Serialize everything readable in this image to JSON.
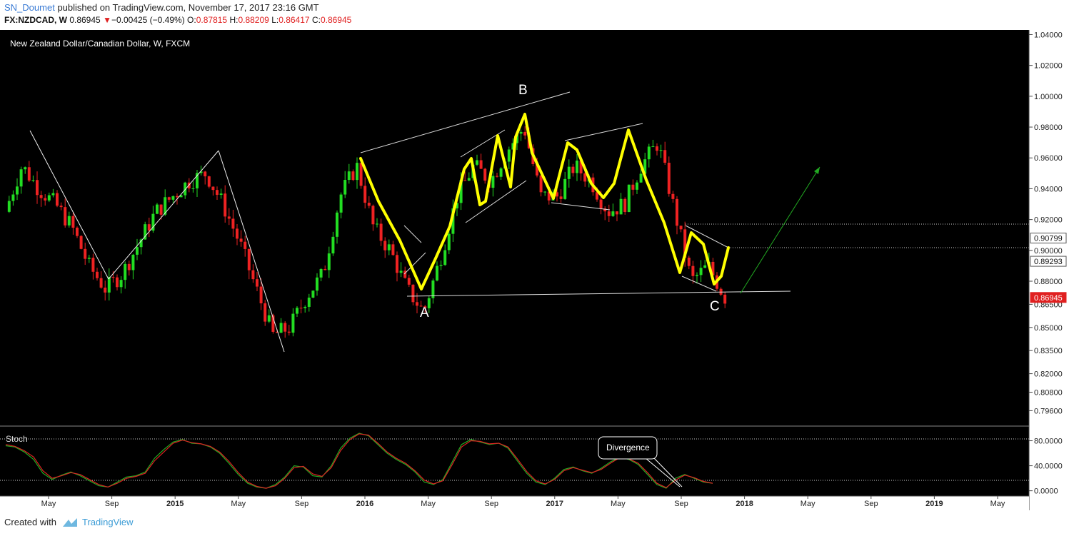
{
  "header": {
    "author": "SN_Doumet",
    "published": "published on TradingView.com, November 17, 2017 23:16 GMT",
    "symbol": "FX:NZDCAD, W",
    "last": "0.86945",
    "change_arrow": "▼",
    "change": "−0.00425 (−0.49%)",
    "o_label": "O:",
    "o": "0.87815",
    "h_label": "H:",
    "h": "0.88209",
    "l_label": "L:",
    "l": "0.86417",
    "c_label": "C:",
    "c": "0.86945"
  },
  "footer": {
    "created": "Created with",
    "brand": "TradingView"
  },
  "chart_data": [
    {
      "type": "candlestick",
      "title": "New Zealand Dollar/Canadian Dollar, W, FXCM",
      "ylim": [
        0.786,
        1.043
      ],
      "grid": false,
      "price_ticks": [
        "1.04000",
        "1.02000",
        "1.00000",
        "0.98000",
        "0.96000",
        "0.94000",
        "0.92000",
        "0.90000",
        "0.88000",
        "0.86500",
        "0.85000",
        "0.83500",
        "0.82000",
        "0.80800",
        "0.79600"
      ],
      "price_tick_values": [
        1.04,
        1.02,
        1.0,
        0.98,
        0.96,
        0.94,
        0.92,
        0.9,
        0.88,
        0.865,
        0.85,
        0.835,
        0.82,
        0.808,
        0.796
      ],
      "price_labels": [
        {
          "text": "0.90799",
          "value": 0.90799,
          "color": "#ffffff"
        },
        {
          "text": "0.89293",
          "value": 0.89293,
          "color": "#ffffff"
        },
        {
          "text": "0.86945",
          "value": 0.86945,
          "color": "#e02020"
        }
      ],
      "time_labels": [
        "May",
        "Sep",
        "2015",
        "May",
        "Sep",
        "2016",
        "May",
        "Sep",
        "2017",
        "May",
        "Sep",
        "2018",
        "May",
        "Sep",
        "2019",
        "May"
      ],
      "annotations": [
        "A",
        "B",
        "C"
      ],
      "series": [
        {
          "name": "FX:NZDCAD, W",
          "close_path": [
            [
              "2014-02",
              0.925
            ],
            [
              "2014-04",
              0.955
            ],
            [
              "2014-06",
              0.94
            ],
            [
              "2014-07",
              0.93
            ],
            [
              "2014-08",
              0.915
            ],
            [
              "2014-09",
              0.89
            ],
            [
              "2014-10",
              0.875
            ],
            [
              "2014-11",
              0.885
            ],
            [
              "2014-12",
              0.905
            ],
            [
              "2015-01",
              0.925
            ],
            [
              "2015-02",
              0.935
            ],
            [
              "2015-03",
              0.945
            ],
            [
              "2015-04",
              0.95
            ],
            [
              "2015-05",
              0.93
            ],
            [
              "2015-06",
              0.905
            ],
            [
              "2015-07",
              0.875
            ],
            [
              "2015-08",
              0.845
            ],
            [
              "2015-09",
              0.85
            ],
            [
              "2015-10",
              0.87
            ],
            [
              "2015-11",
              0.885
            ],
            [
              "2015-12",
              0.935
            ],
            [
              "2016-01",
              0.955
            ],
            [
              "2016-02",
              0.915
            ],
            [
              "2016-03",
              0.9
            ],
            [
              "2016-04",
              0.875
            ],
            [
              "2016-05",
              0.86
            ],
            [
              "2016-06",
              0.895
            ],
            [
              "2016-07",
              0.935
            ],
            [
              "2016-08",
              0.955
            ],
            [
              "2016-09",
              0.945
            ],
            [
              "2016-10",
              0.965
            ],
            [
              "2016-11",
              0.98
            ],
            [
              "2016-12",
              0.935
            ],
            [
              "2017-01",
              0.935
            ],
            [
              "2017-02",
              0.955
            ],
            [
              "2017-03",
              0.945
            ],
            [
              "2017-04",
              0.925
            ],
            [
              "2017-05",
              0.93
            ],
            [
              "2017-06",
              0.955
            ],
            [
              "2017-07",
              0.97
            ],
            [
              "2017-08",
              0.925
            ],
            [
              "2017-09",
              0.88
            ],
            [
              "2017-10",
              0.89
            ],
            [
              "2017-11",
              0.86945
            ]
          ]
        }
      ]
    },
    {
      "type": "line",
      "title": "Stoch",
      "ylim": [
        -5,
        100
      ],
      "levels": [
        80,
        20
      ],
      "y_ticks": [
        "80.0000",
        "40.0000",
        "0.0000"
      ],
      "y_tick_values": [
        80,
        40,
        0
      ],
      "annotation": "Divergence",
      "series": [
        {
          "color": "#22aa22",
          "values": [
            72,
            70,
            62,
            50,
            28,
            18,
            25,
            30,
            24,
            16,
            8,
            6,
            14,
            22,
            24,
            30,
            52,
            66,
            78,
            82,
            76,
            75,
            70,
            60,
            44,
            26,
            12,
            6,
            4,
            10,
            22,
            40,
            38,
            24,
            22,
            40,
            68,
            84,
            92,
            88,
            74,
            60,
            50,
            42,
            30,
            14,
            10,
            18,
            46,
            74,
            82,
            78,
            74,
            76,
            68,
            48,
            28,
            14,
            10,
            20,
            34,
            38,
            32,
            28,
            36,
            46,
            54,
            50,
            42,
            26,
            10,
            4,
            20,
            26,
            20,
            14,
            12
          ]
        },
        {
          "color": "#dd2222",
          "values": [
            74,
            71,
            64,
            54,
            32,
            20,
            24,
            29,
            26,
            18,
            10,
            6,
            12,
            20,
            23,
            28,
            48,
            62,
            76,
            81,
            77,
            75,
            71,
            62,
            47,
            29,
            14,
            7,
            4,
            8,
            20,
            37,
            39,
            27,
            23,
            37,
            64,
            82,
            91,
            89,
            76,
            62,
            52,
            44,
            32,
            17,
            11,
            16,
            42,
            70,
            80,
            79,
            75,
            76,
            70,
            51,
            31,
            16,
            11,
            18,
            32,
            37,
            33,
            29,
            34,
            44,
            53,
            51,
            44,
            29,
            12,
            5,
            17,
            25,
            21,
            15,
            12
          ]
        }
      ]
    }
  ]
}
